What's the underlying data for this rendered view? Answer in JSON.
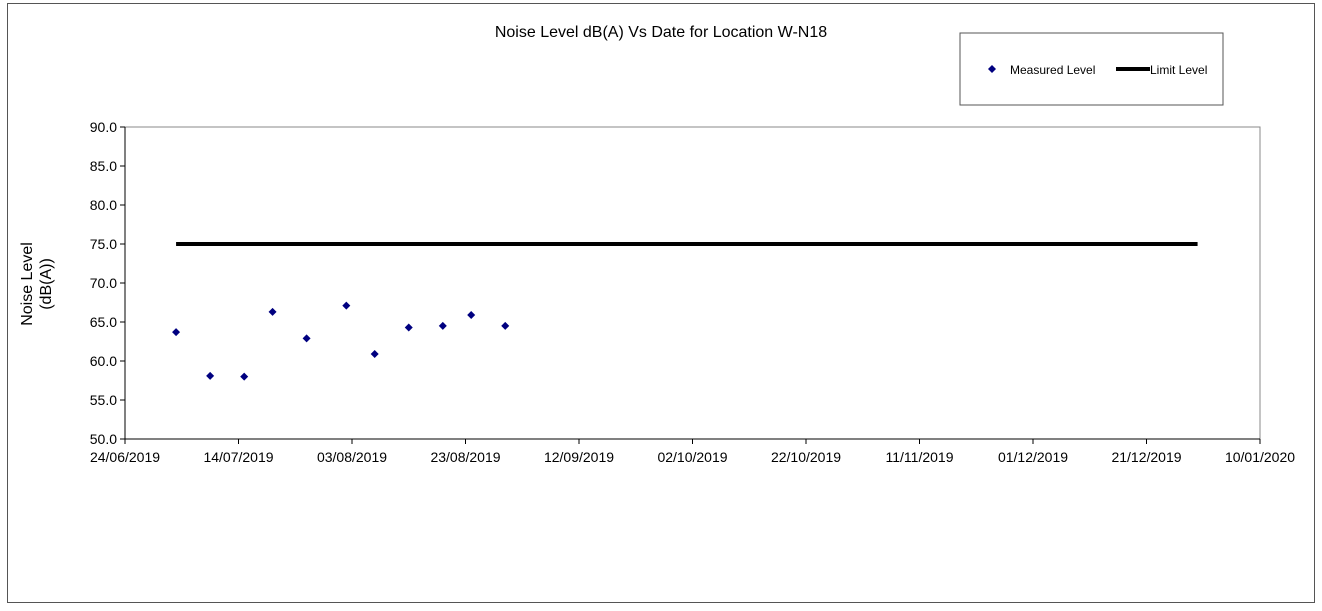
{
  "chart_data": {
    "type": "scatter",
    "title": "Noise Level dB(A) Vs Date for Location W-N18",
    "xlabel": "",
    "ylabel": [
      "Noise Level",
      "(dB(A))"
    ],
    "xlim": [
      "24/06/2019",
      "10/01/2020"
    ],
    "ylim": [
      50,
      90
    ],
    "x_ticks": [
      "24/06/2019",
      "14/07/2019",
      "03/08/2019",
      "23/08/2019",
      "12/09/2019",
      "02/10/2019",
      "22/10/2019",
      "11/11/2019",
      "01/12/2019",
      "21/12/2019",
      "10/01/2020"
    ],
    "y_ticks": [
      "50.0",
      "55.0",
      "60.0",
      "65.0",
      "70.0",
      "75.0",
      "80.0",
      "85.0",
      "90.0"
    ],
    "grid": false,
    "legend_position": "top-right",
    "series": [
      {
        "name": "Measured Level",
        "marker": "diamond",
        "color": "#000080",
        "points": [
          {
            "x": "03/07/2019",
            "y": 63.7
          },
          {
            "x": "09/07/2019",
            "y": 58.1
          },
          {
            "x": "15/07/2019",
            "y": 58.0
          },
          {
            "x": "20/07/2019",
            "y": 66.3
          },
          {
            "x": "26/07/2019",
            "y": 62.9
          },
          {
            "x": "02/08/2019",
            "y": 67.1
          },
          {
            "x": "07/08/2019",
            "y": 60.9
          },
          {
            "x": "13/08/2019",
            "y": 64.3
          },
          {
            "x": "19/08/2019",
            "y": 64.5
          },
          {
            "x": "24/08/2019",
            "y": 65.9
          },
          {
            "x": "30/08/2019",
            "y": 64.5
          }
        ]
      },
      {
        "name": "Limit Level",
        "marker": "line",
        "color": "#000000",
        "points": [
          {
            "x": "03/07/2019",
            "y": 75.0
          },
          {
            "x": "30/12/2019",
            "y": 75.0
          }
        ]
      }
    ]
  }
}
